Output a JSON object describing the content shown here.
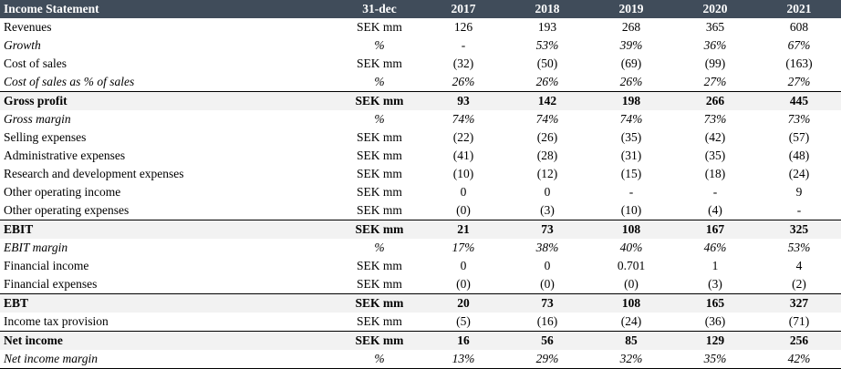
{
  "header": {
    "label": "Income Statement",
    "unit": "31-dec",
    "years": [
      "2017",
      "2018",
      "2019",
      "2020",
      "2021"
    ]
  },
  "rows": [
    {
      "label": "Revenues",
      "unit": "SEK mm",
      "values": [
        "126",
        "193",
        "268",
        "365",
        "608"
      ]
    },
    {
      "label": "Growth",
      "unit": "%",
      "values": [
        "-",
        "53%",
        "39%",
        "36%",
        "67%"
      ]
    },
    {
      "label": "Cost of sales",
      "unit": "SEK mm",
      "values": [
        "(32)",
        "(50)",
        "(69)",
        "(99)",
        "(163)"
      ]
    },
    {
      "label": "Cost of sales as % of sales",
      "unit": "%",
      "values": [
        "26%",
        "26%",
        "26%",
        "27%",
        "27%"
      ]
    },
    {
      "label": "Gross profit",
      "unit": "SEK mm",
      "values": [
        "93",
        "142",
        "198",
        "266",
        "445"
      ]
    },
    {
      "label": "Gross margin",
      "unit": "%",
      "values": [
        "74%",
        "74%",
        "74%",
        "73%",
        "73%"
      ]
    },
    {
      "label": "Selling expenses",
      "unit": "SEK mm",
      "values": [
        "(22)",
        "(26)",
        "(35)",
        "(42)",
        "(57)"
      ]
    },
    {
      "label": "Administrative expenses",
      "unit": "SEK mm",
      "values": [
        "(41)",
        "(28)",
        "(31)",
        "(35)",
        "(48)"
      ]
    },
    {
      "label": "Research and development expenses",
      "unit": "SEK mm",
      "values": [
        "(10)",
        "(12)",
        "(15)",
        "(18)",
        "(24)"
      ]
    },
    {
      "label": "Other operating income",
      "unit": "SEK mm",
      "values": [
        "0",
        "0",
        "-",
        "-",
        "9"
      ]
    },
    {
      "label": "Other operating expenses",
      "unit": "SEK mm",
      "values": [
        "(0)",
        "(3)",
        "(10)",
        "(4)",
        "-"
      ]
    },
    {
      "label": "EBIT",
      "unit": "SEK mm",
      "values": [
        "21",
        "73",
        "108",
        "167",
        "325"
      ]
    },
    {
      "label": "EBIT margin",
      "unit": "%",
      "values": [
        "17%",
        "38%",
        "40%",
        "46%",
        "53%"
      ]
    },
    {
      "label": "Financial income",
      "unit": "SEK mm",
      "values": [
        "0",
        "0",
        "0.701",
        "1",
        "4"
      ]
    },
    {
      "label": "Financial expenses",
      "unit": "SEK mm",
      "values": [
        "(0)",
        "(0)",
        "(0)",
        "(3)",
        "(2)"
      ]
    },
    {
      "label": "EBT",
      "unit": "SEK mm",
      "values": [
        "20",
        "73",
        "108",
        "165",
        "327"
      ]
    },
    {
      "label": "Income tax provision",
      "unit": "SEK mm",
      "values": [
        "(5)",
        "(16)",
        "(24)",
        "(36)",
        "(71)"
      ]
    },
    {
      "label": "Net income",
      "unit": "SEK mm",
      "values": [
        "16",
        "56",
        "85",
        "129",
        "256"
      ]
    },
    {
      "label": "Net income margin",
      "unit": "%",
      "values": [
        "13%",
        "29%",
        "32%",
        "35%",
        "42%"
      ]
    }
  ],
  "colors": {
    "header_bg": "#404c5a",
    "header_text": "#ffffff",
    "subtotal_bg": "#f2f2f2"
  }
}
